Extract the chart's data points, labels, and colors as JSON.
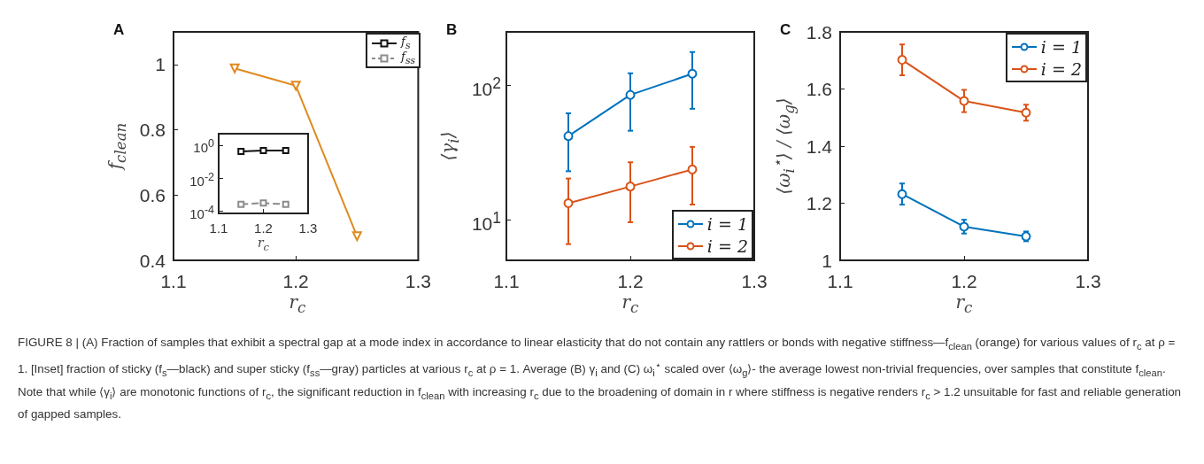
{
  "chart_data": [
    {
      "type": "line",
      "title": "A",
      "xlabel": "r$_{c}$",
      "ylabel": "f$_{clean}$",
      "x": [
        1.15,
        1.2,
        1.25
      ],
      "xlim": [
        1.1,
        1.3
      ],
      "xticks": [
        1.1,
        1.2,
        1.3
      ],
      "ylim": [
        0.4,
        1.1
      ],
      "yticks": [
        0.4,
        0.6,
        0.8,
        1
      ],
      "marker": "triangle",
      "series": [
        {
          "color": "#e08a1e",
          "values": [
            0.988,
            0.935,
            0.474
          ]
        }
      ]
    },
    {
      "type": "line",
      "xlabel": "r$_{c}$",
      "x": [
        1.15,
        1.2,
        1.25
      ],
      "xlim": [
        1.1,
        1.3
      ],
      "xticks": [
        1.1,
        1.2,
        1.3
      ],
      "log": "y",
      "ylim": [
        7e-05,
        5
      ],
      "yticks": [
        {
          "value": 0.0001,
          "label": "10$^{-4}$"
        },
        {
          "value": 0.01,
          "label": "10$^{-2}$"
        },
        {
          "value": 1,
          "label": "10$^{0}$"
        }
      ],
      "marker": "square",
      "legend": "top right",
      "series": [
        {
          "name": "f$_{s}$",
          "color": "#111111",
          "values": [
            0.42,
            0.47,
            0.47
          ]
        },
        {
          "name": "f$_{ss}$",
          "color": "#8c8c8c",
          "line_style": "dashed",
          "values": [
            0.00025,
            0.0003,
            0.00025
          ]
        }
      ]
    },
    {
      "type": "line",
      "title": "B",
      "xlabel": "r$_{c}$",
      "ylabel": "⟨γ$_{i}$⟩",
      "x": [
        1.15,
        1.2,
        1.25
      ],
      "xlim": [
        1.1,
        1.3
      ],
      "xticks": [
        1.1,
        1.2,
        1.3
      ],
      "log": "y",
      "ylim": [
        5,
        250
      ],
      "yticks": [
        {
          "value": 10,
          "label": "10$^{1}$"
        },
        {
          "value": 100,
          "label": "10$^{2}$"
        }
      ],
      "marker": "circle",
      "legend": "bottom right",
      "series": [
        {
          "name": "i = 1",
          "color": "#0072bd",
          "values": [
            42,
            85,
            122
          ],
          "errors": [
            [
              23,
              62
            ],
            [
              46,
              123
            ],
            [
              67,
              177
            ]
          ]
        },
        {
          "name": "i = 2",
          "color": "#d95319",
          "values": [
            13.3,
            17.7,
            23.7
          ],
          "errors": [
            [
              6.6,
              20.3
            ],
            [
              9.6,
              26.8
            ],
            [
              13,
              34.9
            ]
          ]
        }
      ]
    },
    {
      "type": "line",
      "title": "C",
      "xlabel": "r$_{c}$",
      "ylabel": "⟨ω$_{i}$$^{⋆}$⟩ / ⟨ω$_{g}$⟩",
      "x": [
        1.15,
        1.2,
        1.25
      ],
      "xlim": [
        1.1,
        1.3
      ],
      "xticks": [
        1.1,
        1.2,
        1.3
      ],
      "ylim": [
        1,
        1.8
      ],
      "yticks": [
        1,
        1.2,
        1.4,
        1.6,
        1.8
      ],
      "marker": "circle",
      "legend": "top right",
      "series": [
        {
          "name": "i = 1",
          "color": "#0072bd",
          "values": [
            1.232,
            1.118,
            1.084
          ],
          "errors": [
            0.037,
            0.024,
            0.017
          ]
        },
        {
          "name": "i = 2",
          "color": "#d95319",
          "values": [
            1.702,
            1.558,
            1.517
          ],
          "errors": [
            0.054,
            0.039,
            0.028
          ]
        }
      ],
      "annotations": [
        "FIGURE 8 | (A) Fraction of samples that exhibit a spectral gap at a mode index in accordance to linear elasticity that do not contain any rattlers or bonds with negative stiffness—f$_{clean}$ (orange) for various values of r$_{c}$ at ρ = 1. [Inset] fraction of sticky (f$_{s}$—black) and super sticky (f$_{ss}$—gray) particles at various r$_{c}$ at ρ = 1. Average (B) γ$_{i}$ and (C) ω$_{i}$$^{⋆}$ scaled over ⟨ω$_{g}$⟩- the average lowest non-trivial frequencies, over samples that constitute f$_{clean}$. Note that while ⟨γ$_{i}$⟩ are monotonic functions of r$_{c}$, the significant reduction in f$_{clean}$ with increasing r$_{c}$ due to the broadening of domain in r where stiffness is negative renders r$_{c}$ > 1.2 unsuitable for fast and reliable generation of gapped samples."
      ]
    }
  ]
}
